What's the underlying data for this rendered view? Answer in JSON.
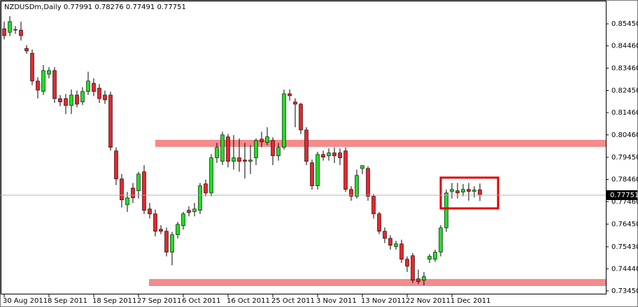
{
  "chart_data": {
    "type": "candlestick",
    "title": "NZDUSDm,Daily",
    "up_color": "#22dd22",
    "down_color": "#e8262c",
    "ylim": [
      0.7329,
      0.8649
    ],
    "yticks": [
      {
        "value": 0.8545,
        "label": "0.85450"
      },
      {
        "value": 0.8446,
        "label": "0.84460"
      },
      {
        "value": 0.8346,
        "label": "0.83460"
      },
      {
        "value": 0.8245,
        "label": "0.82450"
      },
      {
        "value": 0.8146,
        "label": "0.81460"
      },
      {
        "value": 0.8046,
        "label": "0.80460"
      },
      {
        "value": 0.7945,
        "label": "0.79450"
      },
      {
        "value": 0.7846,
        "label": "0.78460"
      },
      {
        "value": 0.7746,
        "label": "0.77460"
      },
      {
        "value": 0.7645,
        "label": "0.76450"
      },
      {
        "value": 0.7543,
        "label": "0.75430"
      },
      {
        "value": 0.7444,
        "label": "0.74440"
      },
      {
        "value": 0.7345,
        "label": "0.73450"
      }
    ],
    "categories": [
      "30 Aug 2011",
      null,
      null,
      null,
      null,
      null,
      null,
      null,
      "8 Sep 2011",
      null,
      null,
      null,
      null,
      null,
      null,
      null,
      "18 Sep 2011",
      null,
      null,
      null,
      null,
      null,
      null,
      null,
      "27 Sep 2011",
      null,
      null,
      null,
      null,
      null,
      null,
      null,
      "6 Oct 2011",
      null,
      null,
      null,
      null,
      null,
      null,
      null,
      "16 Oct 2011",
      null,
      null,
      null,
      null,
      null,
      null,
      null,
      "25 Oct 2011",
      null,
      null,
      null,
      null,
      null,
      null,
      null,
      "3 Nov 2011",
      null,
      null,
      null,
      null,
      null,
      null,
      null,
      "13 Nov 2011",
      null,
      null,
      null,
      null,
      null,
      null,
      null,
      "22 Nov 2011",
      null,
      null,
      null,
      null,
      null,
      null,
      null,
      "1 Dec 2011",
      null,
      null,
      null,
      null,
      null
    ],
    "candles": [
      [
        0.8523,
        0.8555,
        0.8475,
        0.8492
      ],
      [
        0.8507,
        0.858,
        0.849,
        0.8555
      ],
      [
        0.8517,
        0.8535,
        0.85,
        0.852
      ],
      [
        0.8517,
        0.8555,
        0.847,
        0.8492
      ],
      [
        0.8435,
        0.845,
        0.841,
        0.8423
      ],
      [
        0.8413,
        0.843,
        0.827,
        0.8288
      ],
      [
        0.8288,
        0.8305,
        0.821,
        0.8247
      ],
      [
        0.8241,
        0.836,
        0.8225,
        0.8335
      ],
      [
        0.8319,
        0.835,
        0.83,
        0.8335
      ],
      [
        0.8335,
        0.835,
        0.819,
        0.8209
      ],
      [
        0.8209,
        0.8225,
        0.8175,
        0.8194
      ],
      [
        0.8209,
        0.823,
        0.814,
        0.8178
      ],
      [
        0.8178,
        0.825,
        0.814,
        0.8225
      ],
      [
        0.8225,
        0.8245,
        0.817,
        0.8184
      ],
      [
        0.8194,
        0.826,
        0.818,
        0.8241
      ],
      [
        0.8241,
        0.833,
        0.8225,
        0.8288
      ],
      [
        0.8278,
        0.83,
        0.822,
        0.8241
      ],
      [
        0.8256,
        0.8275,
        0.819,
        0.8209
      ],
      [
        0.8225,
        0.8245,
        0.8185,
        0.8203
      ],
      [
        0.8225,
        0.824,
        0.7975,
        0.799
      ],
      [
        0.7974,
        0.799,
        0.782,
        0.7848
      ],
      [
        0.7848,
        0.787,
        0.772,
        0.7754
      ],
      [
        0.7732,
        0.779,
        0.77,
        0.7763
      ],
      [
        0.7807,
        0.783,
        0.774,
        0.7763
      ],
      [
        0.7795,
        0.788,
        0.776,
        0.787
      ],
      [
        0.788,
        0.791,
        0.769,
        0.7707
      ],
      [
        0.7713,
        0.774,
        0.767,
        0.7691
      ],
      [
        0.7691,
        0.771,
        0.759,
        0.7613
      ],
      [
        0.7622,
        0.764,
        0.76,
        0.7613
      ],
      [
        0.7613,
        0.763,
        0.75,
        0.7519
      ],
      [
        0.7519,
        0.761,
        0.746,
        0.7597
      ],
      [
        0.7597,
        0.7655,
        0.758,
        0.7644
      ],
      [
        0.7638,
        0.77,
        0.762,
        0.7691
      ],
      [
        0.7707,
        0.7725,
        0.768,
        0.7697
      ],
      [
        0.7701,
        0.774,
        0.768,
        0.7713
      ],
      [
        0.7707,
        0.783,
        0.769,
        0.7817
      ],
      [
        0.7826,
        0.7845,
        0.777,
        0.7785
      ],
      [
        0.7785,
        0.796,
        0.777,
        0.7943
      ],
      [
        0.7943,
        0.801,
        0.792,
        0.799
      ],
      [
        0.7927,
        0.806,
        0.791,
        0.8046
      ],
      [
        0.8037,
        0.805,
        0.79,
        0.7927
      ],
      [
        0.7927,
        0.8045,
        0.789,
        0.7943
      ],
      [
        0.7943,
        0.803,
        0.788,
        0.7927
      ],
      [
        0.7933,
        0.801,
        0.785,
        0.7927
      ],
      [
        0.7927,
        0.8,
        0.787,
        0.7933
      ],
      [
        0.7943,
        0.803,
        0.791,
        0.8021
      ],
      [
        0.8027,
        0.806,
        0.799,
        0.8015
      ],
      [
        0.8012,
        0.808,
        0.8,
        0.8037
      ],
      [
        0.8021,
        0.8035,
        0.791,
        0.7952
      ],
      [
        0.7952,
        0.801,
        0.793,
        0.799
      ],
      [
        0.799,
        0.825,
        0.798,
        0.8231
      ],
      [
        0.8231,
        0.825,
        0.82,
        0.8222
      ],
      [
        0.8194,
        0.821,
        0.808,
        0.8184
      ],
      [
        0.8184,
        0.819,
        0.805,
        0.8068
      ],
      [
        0.8068,
        0.808,
        0.791,
        0.7927
      ],
      [
        0.7921,
        0.7935,
        0.78,
        0.7817
      ],
      [
        0.7817,
        0.797,
        0.78,
        0.7958
      ],
      [
        0.7958,
        0.7975,
        0.793,
        0.7946
      ],
      [
        0.7952,
        0.7985,
        0.793,
        0.7965
      ],
      [
        0.7965,
        0.799,
        0.792,
        0.7952
      ],
      [
        0.7965,
        0.7985,
        0.791,
        0.7943
      ],
      [
        0.7974,
        0.799,
        0.779,
        0.7801
      ],
      [
        0.7801,
        0.7815,
        0.775,
        0.777
      ],
      [
        0.777,
        0.789,
        0.776,
        0.7864
      ],
      [
        0.7895,
        0.791,
        0.787,
        0.7908
      ],
      [
        0.7895,
        0.7905,
        0.775,
        0.777
      ],
      [
        0.777,
        0.778,
        0.767,
        0.7691
      ],
      [
        0.7691,
        0.77,
        0.76,
        0.7613
      ],
      [
        0.7613,
        0.763,
        0.756,
        0.7581
      ],
      [
        0.7581,
        0.7595,
        0.753,
        0.755
      ],
      [
        0.7544,
        0.757,
        0.753,
        0.7556
      ],
      [
        0.7556,
        0.7575,
        0.747,
        0.7487
      ],
      [
        0.7487,
        0.75,
        0.743,
        0.7456
      ],
      [
        0.7503,
        0.7515,
        0.738,
        0.7393
      ],
      [
        0.7399,
        0.744,
        0.7375,
        0.7387
      ],
      [
        0.7393,
        0.743,
        0.737,
        0.7409
      ],
      [
        0.7487,
        0.751,
        0.747,
        0.75
      ],
      [
        0.7487,
        0.753,
        0.7475,
        0.7519
      ],
      [
        0.7519,
        0.764,
        0.75,
        0.7628
      ],
      [
        0.7628,
        0.78,
        0.761,
        0.7785
      ],
      [
        0.7792,
        0.783,
        0.776,
        0.7801
      ],
      [
        0.7795,
        0.783,
        0.776,
        0.7785
      ],
      [
        0.7789,
        0.7825,
        0.777,
        0.7801
      ],
      [
        0.7801,
        0.783,
        0.775,
        0.7792
      ],
      [
        0.7792,
        0.7815,
        0.7765,
        0.7798
      ],
      [
        0.77991,
        0.78276,
        0.77491,
        0.77751
      ]
    ]
  }
}
